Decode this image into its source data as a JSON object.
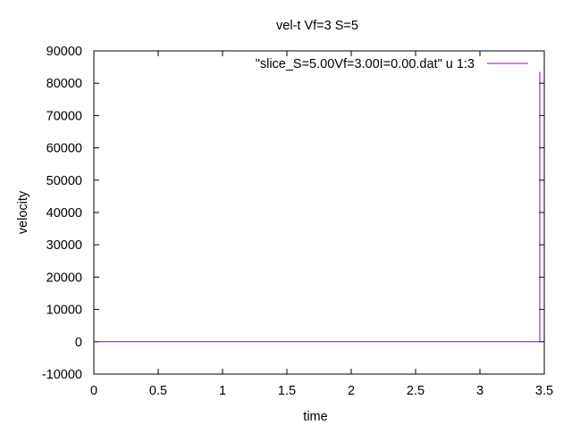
{
  "chart_data": {
    "type": "line",
    "title": "vel-t Vf=3 S=5",
    "xlabel": "time",
    "ylabel": "velocity",
    "xlim": [
      0,
      3.5
    ],
    "ylim": [
      -10000,
      90000
    ],
    "x_ticks": [
      0,
      0.5,
      1,
      1.5,
      2,
      2.5,
      3,
      3.5
    ],
    "x_tick_labels": [
      "0",
      "0.5",
      "1",
      "1.5",
      "2",
      "2.5",
      "3",
      "3.5"
    ],
    "y_ticks": [
      -10000,
      0,
      10000,
      20000,
      30000,
      40000,
      50000,
      60000,
      70000,
      80000,
      90000
    ],
    "y_tick_labels": [
      "-10000",
      "0",
      "10000",
      "20000",
      "30000",
      "40000",
      "50000",
      "60000",
      "70000",
      "80000",
      "90000"
    ],
    "grid": false,
    "legend_position": "top-right",
    "series": [
      {
        "name": "\"slice_S=5.00Vf=3.00I=0.00.dat\" u 1:3",
        "color": "#9400d3",
        "x": [
          0,
          3.0,
          3.46,
          3.465,
          3.465
        ],
        "y": [
          0,
          0,
          0,
          0,
          83500
        ]
      }
    ]
  }
}
